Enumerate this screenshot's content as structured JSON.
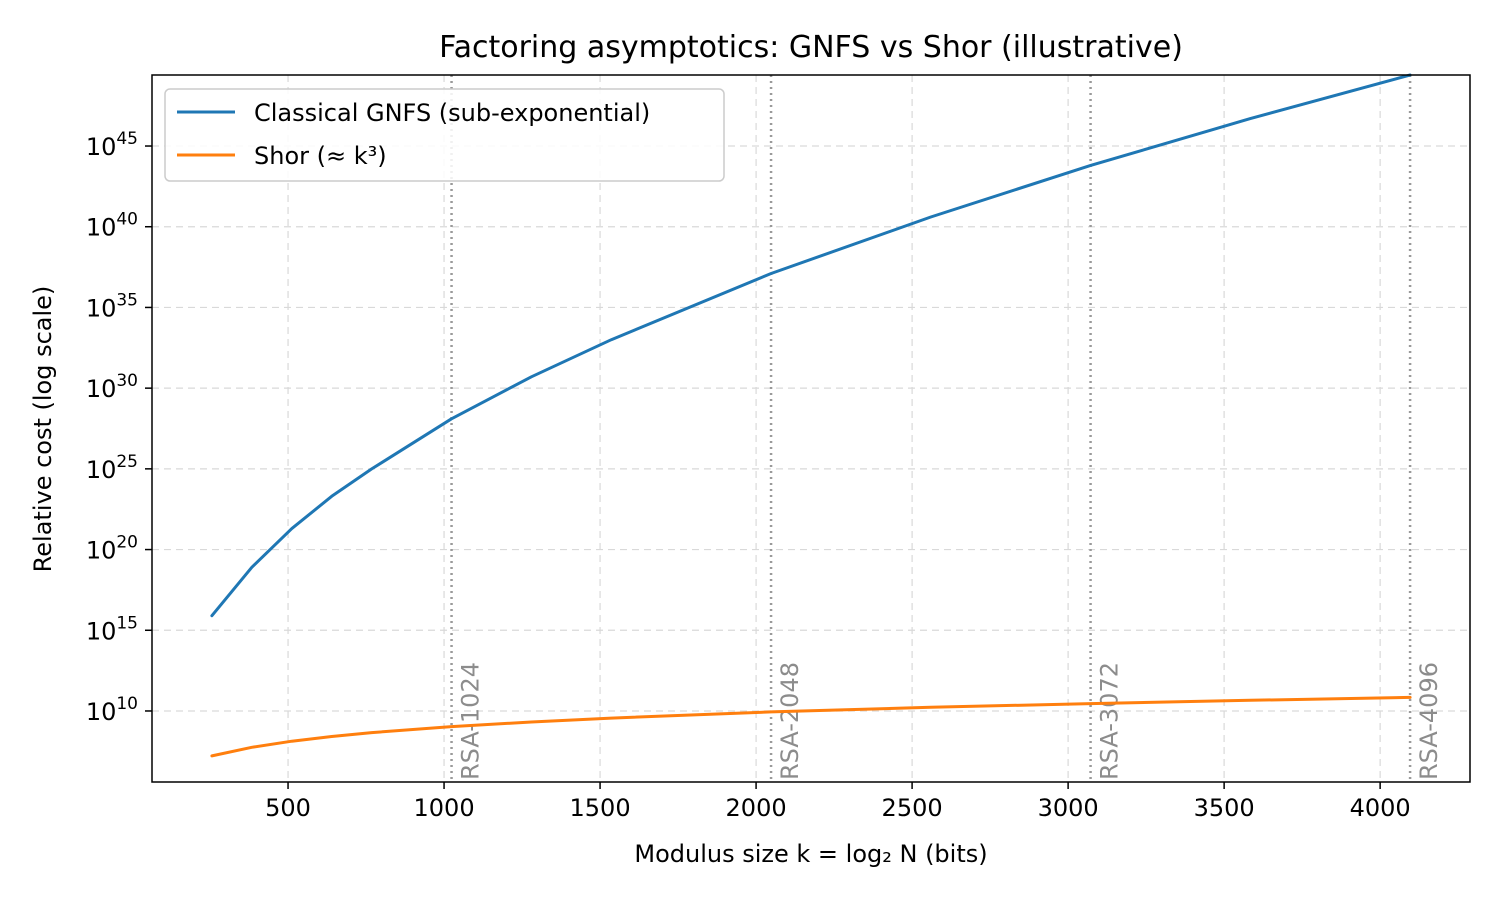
{
  "chart_data": {
    "type": "line",
    "title": "Factoring asymptotics: GNFS vs Shor (illustrative)",
    "xlabel": "Modulus size k = log₂ N (bits)",
    "ylabel": "Relative cost (log scale)",
    "x_scale": "linear",
    "y_scale": "log",
    "xlim": [
      64,
      4288
    ],
    "ylim_log10": [
      5.6,
      49.4
    ],
    "x_ticks": [
      500,
      1000,
      1500,
      2000,
      2500,
      3000,
      3500,
      4000
    ],
    "x_tick_labels": [
      "500",
      "1000",
      "1500",
      "2000",
      "2500",
      "3000",
      "3500",
      "4000"
    ],
    "y_ticks_log10": [
      10,
      15,
      20,
      25,
      30,
      35,
      40,
      45
    ],
    "y_tick_labels": [
      {
        "base": "10",
        "exp": "10"
      },
      {
        "base": "10",
        "exp": "15"
      },
      {
        "base": "10",
        "exp": "20"
      },
      {
        "base": "10",
        "exp": "25"
      },
      {
        "base": "10",
        "exp": "30"
      },
      {
        "base": "10",
        "exp": "35"
      },
      {
        "base": "10",
        "exp": "40"
      },
      {
        "base": "10",
        "exp": "45"
      }
    ],
    "grid": true,
    "legend_position": "upper-left",
    "series": [
      {
        "name": "Classical GNFS (sub-exponential)",
        "color": "#1f77b4",
        "x": [
          256,
          384,
          512,
          640,
          768,
          1024,
          1280,
          1536,
          2048,
          2560,
          3072,
          3584,
          4096
        ],
        "log10_y": [
          15.9,
          18.9,
          21.3,
          23.3,
          25.0,
          28.1,
          30.7,
          33.0,
          37.1,
          40.6,
          43.8,
          46.7,
          49.4
        ]
      },
      {
        "name": "Shor (≈ k³)",
        "color": "#ff7f0e",
        "x": [
          256,
          384,
          512,
          640,
          768,
          1024,
          1280,
          1536,
          2048,
          2560,
          3072,
          3584,
          4096
        ],
        "log10_y": [
          7.22,
          7.75,
          8.13,
          8.42,
          8.66,
          9.03,
          9.32,
          9.56,
          9.94,
          10.23,
          10.46,
          10.66,
          10.84
        ]
      }
    ],
    "reference_lines": [
      {
        "x": 1024,
        "label": "RSA-1024"
      },
      {
        "x": 2048,
        "label": "RSA-2048"
      },
      {
        "x": 3072,
        "label": "RSA-3072"
      },
      {
        "x": 4096,
        "label": "RSA-4096"
      }
    ],
    "colors": {
      "grid": "#d9d9d9",
      "reference_line": "#9a9a9a",
      "reference_label": "#8c8c8c",
      "axis": "#000000"
    }
  }
}
